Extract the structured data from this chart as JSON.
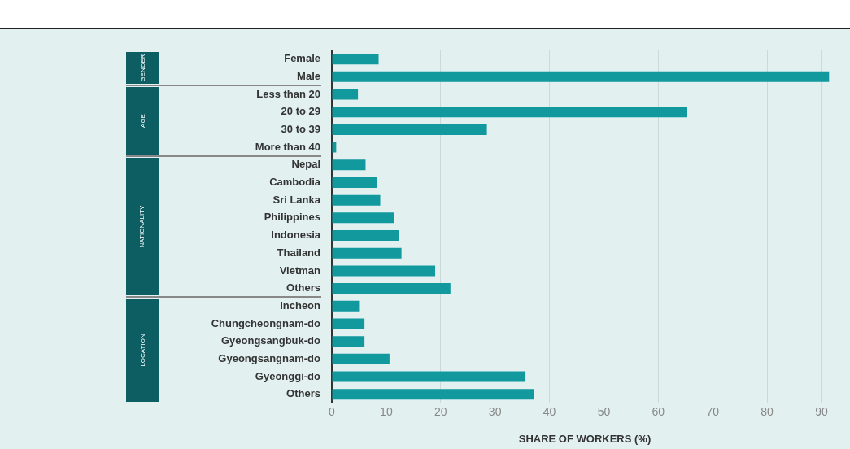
{
  "chart_data": {
    "type": "bar",
    "orientation": "horizontal",
    "xlabel": "SHARE OF WORKERS (%)",
    "categories": [
      "Female",
      "Male",
      "Less than 20",
      "20 to 29",
      "30 to 39",
      "More than 40",
      "Nepal",
      "Cambodia",
      "Sri Lanka",
      "Philippines",
      "Indonesia",
      "Thailand",
      "Vietman",
      "Others",
      "Incheon",
      "Chungcheongnam-do",
      "Gyeongsangbuk-do",
      "Gyeongsangnam-do",
      "Gyeonggi-do",
      "Others"
    ],
    "values": [
      8.6,
      91.4,
      4.8,
      65.3,
      28.5,
      0.8,
      6.2,
      8.3,
      8.9,
      11.5,
      12.3,
      12.8,
      19.0,
      21.8,
      5.0,
      6.0,
      6.0,
      10.6,
      35.6,
      37.1
    ],
    "color": "#11999e",
    "xlim": [
      0,
      93
    ],
    "xticks": [
      0,
      10,
      20,
      30,
      40,
      50,
      60,
      70,
      80,
      90
    ],
    "grid": "x",
    "legend": false,
    "annotations": [
      "GENDER",
      "AGE",
      "NATIONALITY",
      "LOCATION"
    ]
  }
}
